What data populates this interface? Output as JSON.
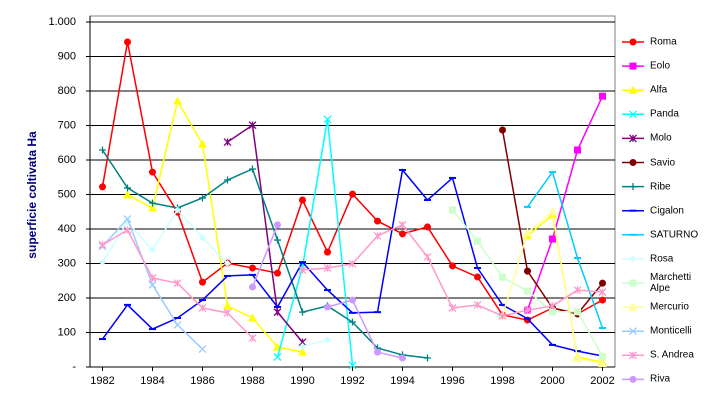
{
  "chart_data": {
    "type": "line",
    "y_label": "superficie coltivata Ha",
    "x": [
      1982,
      1983,
      1984,
      1985,
      1986,
      1987,
      1988,
      1989,
      1990,
      1991,
      1992,
      1993,
      1994,
      1995,
      1996,
      1997,
      1998,
      1999,
      2000,
      2001,
      2002
    ],
    "xlim": [
      1981.5,
      2002.5
    ],
    "xticks": [
      1982,
      1984,
      1986,
      1988,
      1990,
      1992,
      1994,
      1996,
      1998,
      2000,
      2002
    ],
    "ylim": [
      0,
      1000
    ],
    "yticks": [
      {
        "value": 0,
        "label": "-"
      },
      100,
      200,
      300,
      400,
      500,
      600,
      700,
      800,
      900,
      {
        "value": 1000,
        "label": "1.000"
      }
    ],
    "grid": true,
    "legend": "right",
    "series": [
      {
        "name": "Roma",
        "color": "#ff0000",
        "marker": "circle",
        "values": [
          522,
          942,
          565,
          449,
          246,
          301,
          287,
          272,
          484,
          333,
          501,
          423,
          386,
          406,
          293,
          261,
          151,
          136,
          171,
          154,
          194
        ]
      },
      {
        "name": "Eolo",
        "color": "#ff00ff",
        "marker": "square",
        "values": [
          null,
          null,
          null,
          null,
          null,
          null,
          null,
          null,
          null,
          null,
          null,
          null,
          null,
          null,
          null,
          null,
          null,
          165,
          371,
          629,
          785
        ]
      },
      {
        "name": "Alfa",
        "color": "#ffff00",
        "marker": "triangle",
        "values": [
          null,
          499,
          461,
          771,
          646,
          177,
          142,
          58,
          43,
          null,
          null,
          null,
          null,
          null,
          null,
          null,
          null,
          380,
          441,
          29,
          14
        ]
      },
      {
        "name": "Panda",
        "color": "#00ffff",
        "marker": "x",
        "values": [
          null,
          null,
          null,
          null,
          null,
          null,
          null,
          29,
          290,
          718,
          5,
          null,
          null,
          null,
          null,
          null,
          null,
          null,
          null,
          null,
          null
        ]
      },
      {
        "name": "Molo",
        "color": "#800080",
        "marker": "star",
        "values": [
          null,
          null,
          null,
          null,
          null,
          652,
          701,
          159,
          72,
          null,
          null,
          null,
          null,
          null,
          null,
          null,
          null,
          null,
          null,
          null,
          null
        ]
      },
      {
        "name": "Savio",
        "color": "#800000",
        "marker": "circle",
        "values": [
          null,
          null,
          null,
          null,
          null,
          null,
          null,
          null,
          null,
          null,
          null,
          null,
          null,
          null,
          null,
          null,
          687,
          278,
          171,
          154,
          243
        ]
      },
      {
        "name": "Ribe",
        "color": "#008080",
        "marker": "plus",
        "values": [
          629,
          519,
          475,
          461,
          490,
          542,
          574,
          368,
          159,
          177,
          130,
          55,
          35,
          26,
          null,
          null,
          null,
          null,
          null,
          null,
          null
        ]
      },
      {
        "name": "Cigalon",
        "color": "#0000ff",
        "marker": "dash",
        "values": [
          81,
          180,
          110,
          142,
          194,
          264,
          267,
          174,
          304,
          223,
          157,
          159,
          571,
          484,
          548,
          287,
          180,
          140,
          64,
          46,
          32
        ]
      },
      {
        "name": "SATURNO",
        "color": "#00ccff",
        "marker": "dash",
        "values": [
          null,
          null,
          null,
          null,
          null,
          null,
          null,
          null,
          null,
          null,
          null,
          null,
          null,
          null,
          null,
          null,
          null,
          464,
          565,
          316,
          113
        ]
      },
      {
        "name": "Rosa",
        "color": "#ccffff",
        "marker": "diamond",
        "values": [
          304,
          420,
          339,
          455,
          375,
          300,
          null,
          null,
          60,
          78,
          null,
          null,
          null,
          null,
          null,
          null,
          null,
          null,
          null,
          null,
          null
        ]
      },
      {
        "name": "Marchetti Alpe",
        "color": "#ccffcc",
        "marker": "square",
        "values": [
          null,
          null,
          null,
          null,
          null,
          null,
          null,
          null,
          null,
          null,
          null,
          null,
          null,
          null,
          455,
          365,
          260,
          220,
          160,
          160,
          30
        ]
      },
      {
        "name": "Mercurio",
        "color": "#ffff99",
        "marker": "triangle",
        "values": [
          null,
          null,
          null,
          null,
          null,
          null,
          null,
          null,
          null,
          null,
          null,
          null,
          null,
          null,
          null,
          null,
          150,
          390,
          450,
          25,
          10
        ]
      },
      {
        "name": "Monticelli",
        "color": "#99ccff",
        "marker": "x",
        "values": [
          350,
          429,
          238,
          122,
          52,
          null,
          null,
          null,
          null,
          null,
          null,
          null,
          null,
          null,
          null,
          null,
          null,
          null,
          null,
          null,
          null
        ]
      },
      {
        "name": "S. Andrea",
        "color": "#ff99cc",
        "marker": "star",
        "values": [
          354,
          397,
          258,
          243,
          171,
          157,
          84,
          null,
          281,
          287,
          299,
          380,
          412,
          319,
          171,
          180,
          148,
          165,
          177,
          223,
          217
        ]
      },
      {
        "name": "Riva",
        "color": "#cc99ff",
        "marker": "circle",
        "values": [
          null,
          null,
          null,
          null,
          null,
          null,
          232,
          412,
          null,
          174,
          194,
          43,
          26,
          null,
          null,
          null,
          null,
          null,
          null,
          null,
          null
        ]
      }
    ]
  }
}
